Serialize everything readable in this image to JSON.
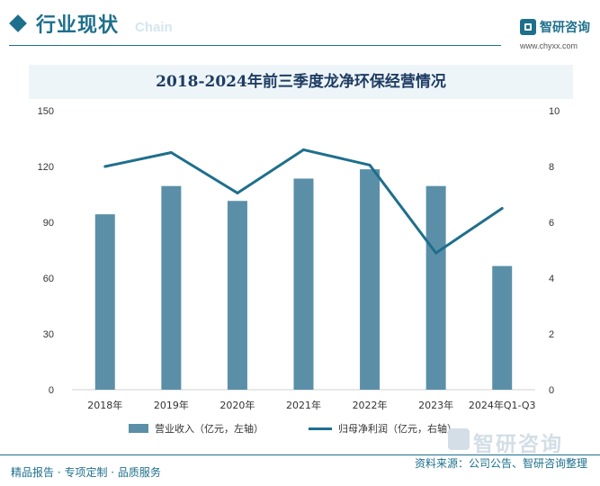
{
  "header": {
    "title": "行业现状",
    "subtitle": "Chain",
    "brand_name": "智研咨询",
    "brand_url": "www.chyxx.com"
  },
  "watermark": {
    "text": "智研咨询"
  },
  "chart_data": {
    "type": "bar",
    "title": "2018-2024年前三季度龙净环保经营情况",
    "categories": [
      "2018年",
      "2019年",
      "2020年",
      "2021年",
      "2022年",
      "2023年",
      "2024年Q1-Q3"
    ],
    "series": [
      {
        "name": "营业收入（亿元，左轴）",
        "type": "bar",
        "axis": "left",
        "values": [
          94.3,
          109.5,
          101.5,
          113.5,
          118.5,
          109.5,
          66.5
        ],
        "color": "#5b8fa8"
      },
      {
        "name": "归母净利润（亿元，右轴）",
        "type": "line",
        "axis": "right",
        "values": [
          8.0,
          8.5,
          7.05,
          8.6,
          8.05,
          4.9,
          6.5
        ],
        "color": "#1e6f8c"
      }
    ],
    "ylim_left": [
      0,
      150
    ],
    "yticks_left": [
      0,
      30,
      60,
      90,
      120,
      150
    ],
    "ylim_right": [
      0,
      10
    ],
    "yticks_right": [
      0,
      2,
      4,
      6,
      8,
      10
    ],
    "grid": false,
    "legend_position": "bottom"
  },
  "footer": {
    "left": "精品报告 · 专项定制 · 品质服务",
    "right": "资料来源：公司公告、智研咨询整理"
  }
}
